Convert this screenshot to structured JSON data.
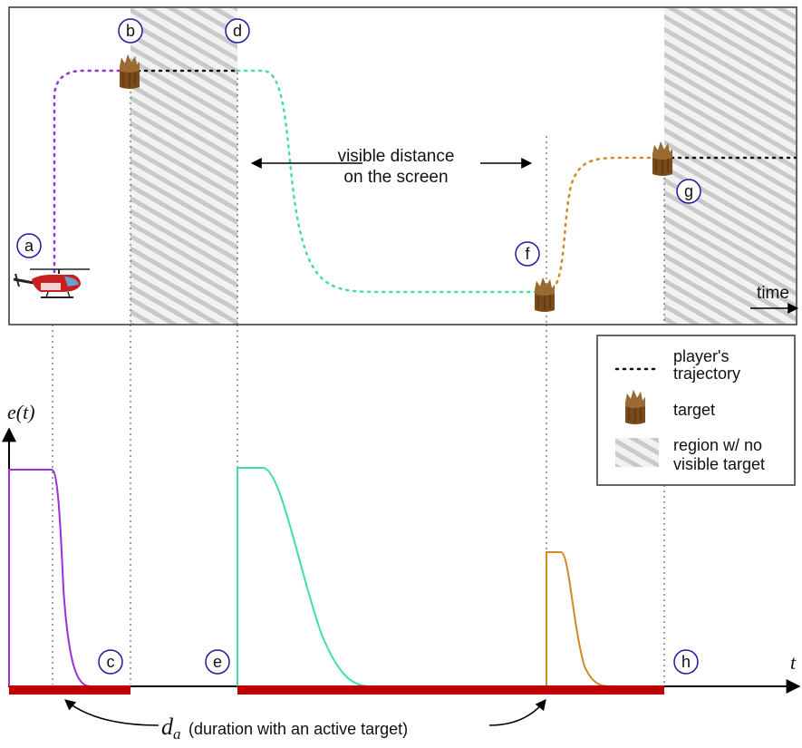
{
  "markers": {
    "a": "a",
    "b": "b",
    "c": "c",
    "d": "d",
    "e": "e",
    "f": "f",
    "g": "g",
    "h": "h"
  },
  "top_panel": {
    "visible_distance_line1": "visible distance",
    "visible_distance_line2": "on the screen",
    "time_label": "time"
  },
  "legend": {
    "trajectory_line1": "player's",
    "trajectory_line2": "trajectory",
    "target": "target",
    "region_line1": "region w/ no",
    "region_line2": "visible target"
  },
  "bottom_panel": {
    "y_axis_label": "e(t)",
    "x_axis_label": "t",
    "duration_symbol": "d",
    "duration_subscript": "a",
    "duration_text": "(duration with an active target)"
  },
  "colors": {
    "segment_a": "#9b30d9",
    "segment_d": "#3fe0a0",
    "segment_f": "#d08a20",
    "active_bar": "#c00000",
    "target": "#7a4a1a",
    "hatch": "#c8c8c8",
    "marker_circle": "#1a1aa0"
  },
  "icons": [
    "helicopter-icon",
    "target-icon"
  ]
}
